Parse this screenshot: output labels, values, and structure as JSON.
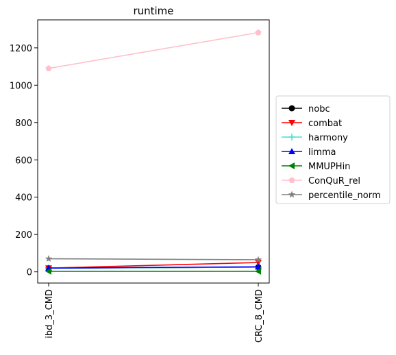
{
  "chart_data": {
    "type": "line",
    "title": "runtime",
    "xlabel": "",
    "ylabel": "",
    "categories": [
      "ibd_3_CMD",
      "CRC_8_CMD"
    ],
    "ylim": [
      -60,
      1350
    ],
    "yticks": [
      0,
      200,
      400,
      600,
      800,
      1000,
      1200
    ],
    "grid": false,
    "legend_position": "right",
    "series": [
      {
        "name": "nobc",
        "values": [
          20,
          25
        ],
        "color": "#000000",
        "marker": "circle"
      },
      {
        "name": "combat",
        "values": [
          20,
          50
        ],
        "color": "#ff0000",
        "marker": "triangle-down"
      },
      {
        "name": "harmony",
        "values": [
          20,
          25
        ],
        "color": "#40e0d0",
        "marker": "plus"
      },
      {
        "name": "limma",
        "values": [
          20,
          27
        ],
        "color": "#0000ff",
        "marker": "triangle-up"
      },
      {
        "name": "MMUPHin",
        "values": [
          3,
          3
        ],
        "color": "#008000",
        "marker": "triangle-left"
      },
      {
        "name": "ConQuR_rel",
        "values": [
          1090,
          1282
        ],
        "color": "#ffc0cb",
        "marker": "pentagon"
      },
      {
        "name": "percentile_norm",
        "values": [
          70,
          65
        ],
        "color": "#808080",
        "marker": "star"
      }
    ]
  }
}
